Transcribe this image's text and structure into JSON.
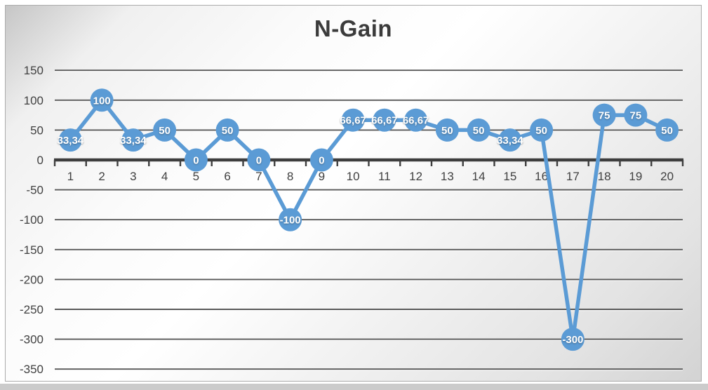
{
  "chart_data": {
    "type": "line",
    "title": "N-Gain",
    "categories": [
      "1",
      "2",
      "3",
      "4",
      "5",
      "6",
      "7",
      "8",
      "9",
      "10",
      "11",
      "12",
      "13",
      "14",
      "15",
      "16",
      "17",
      "18",
      "19",
      "20"
    ],
    "values": [
      33.34,
      100,
      33.34,
      50,
      0,
      50,
      0,
      -100,
      0,
      66.67,
      66.67,
      66.67,
      50,
      50,
      33.34,
      50,
      -300,
      75,
      75,
      50
    ],
    "point_labels": [
      "33,34",
      "100",
      "33,34",
      "50",
      "0",
      "50",
      "0",
      "-100",
      "0",
      "66,67",
      "66,67",
      "66,67",
      "50",
      "50",
      "33,34",
      "50",
      "-300",
      "75",
      "75",
      "50"
    ],
    "xlabel": "",
    "ylabel": "",
    "ylim": [
      -350,
      150
    ],
    "yticks": [
      150,
      100,
      50,
      0,
      -50,
      -100,
      -150,
      -200,
      -250,
      -300,
      -350
    ],
    "grid": true,
    "legend": "none",
    "colors": {
      "series": "#5b9bd5",
      "marker": "#5b9bd5",
      "point_label": "#ffffff",
      "gridline": "#595959",
      "axis": "#3e3e3e",
      "tick_label": "#404040",
      "title": "#3b3b3b"
    }
  }
}
